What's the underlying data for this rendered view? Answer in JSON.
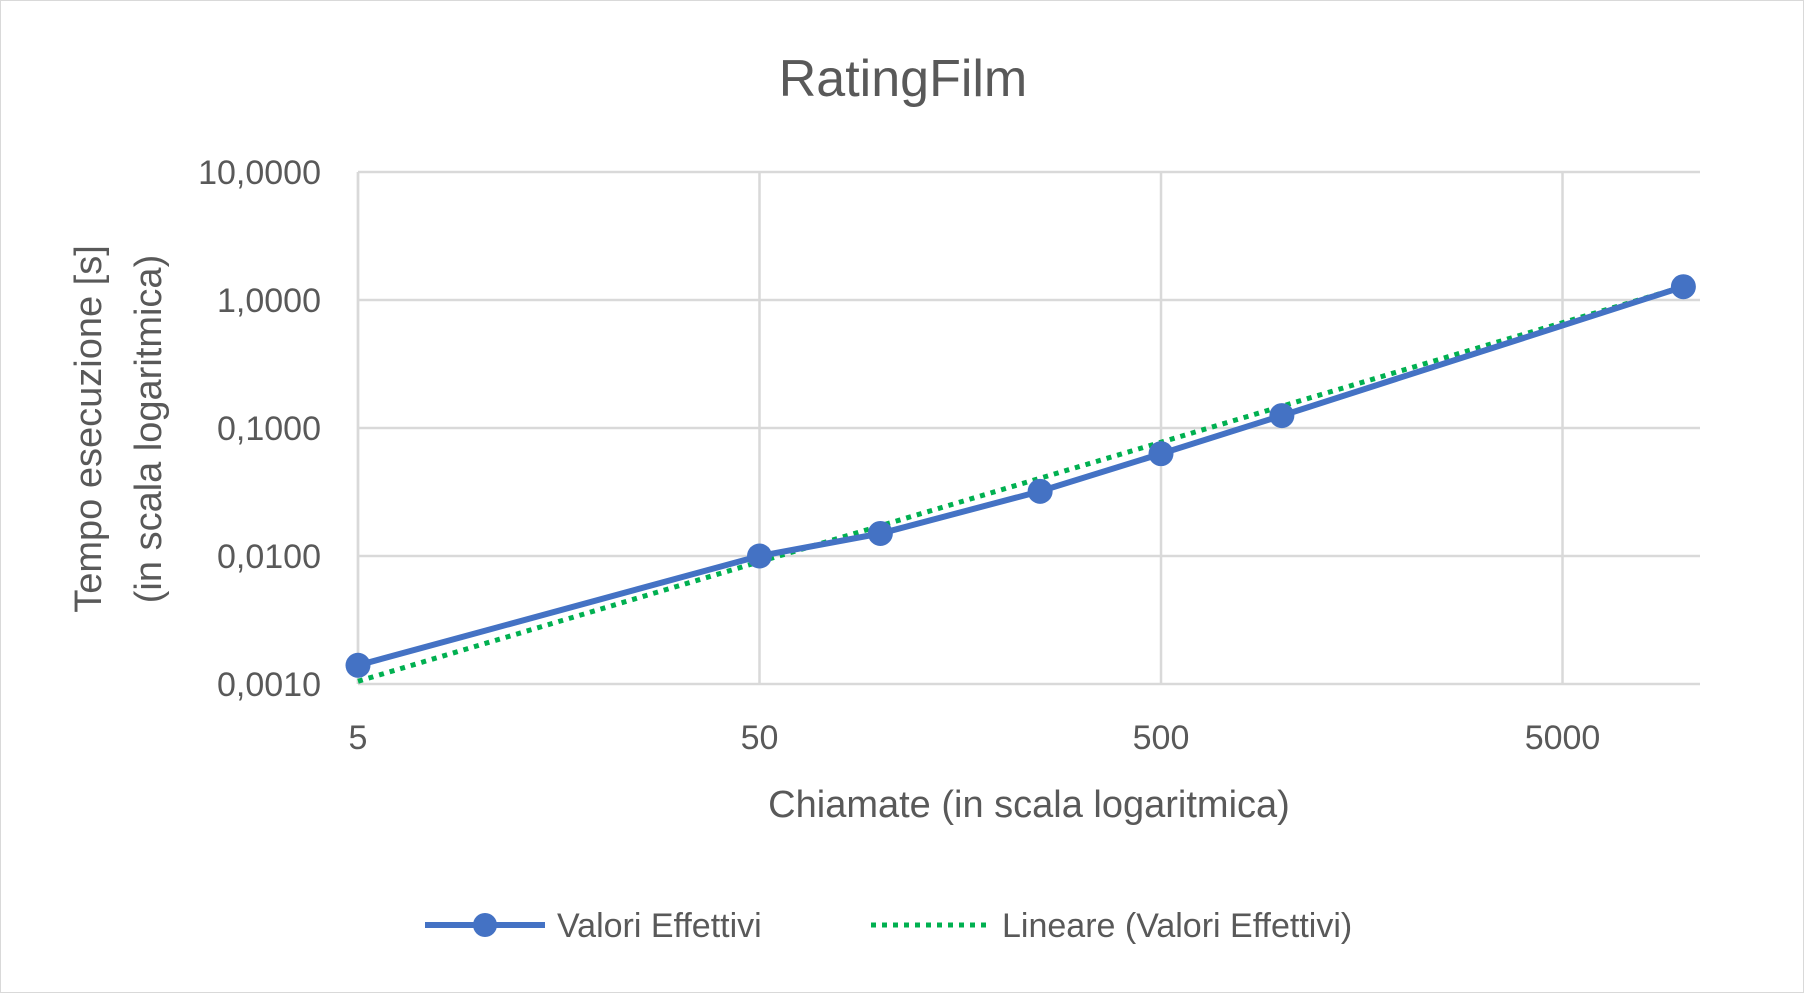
{
  "chart_data": {
    "type": "line",
    "title": "RatingFilm",
    "xlabel": "Chiamate (in scala logaritmica)",
    "ylabel_lines": [
      "Tempo esecuzione [s]",
      "(in scala logaritmica)"
    ],
    "x_scale": "log",
    "y_scale": "log",
    "xlim": [
      5,
      11000
    ],
    "ylim": [
      0.001,
      10
    ],
    "x_ticks": [
      5,
      50,
      500,
      5000
    ],
    "x_tick_labels": [
      "5",
      "50",
      "500",
      "5000"
    ],
    "y_ticks": [
      0.001,
      0.01,
      0.1,
      1,
      10
    ],
    "y_tick_labels": [
      "0,0010",
      "0,0100",
      "0,1000",
      "1,0000",
      "10,0000"
    ],
    "grid": true,
    "legend_position": "bottom",
    "series": [
      {
        "name": "Valori Effettivi",
        "color": "#4472C4",
        "style": "solid-with-markers",
        "x": [
          5,
          50,
          100,
          250,
          500,
          1000,
          10000
        ],
        "y": [
          0.0014,
          0.01,
          0.015,
          0.032,
          0.063,
          0.125,
          1.27
        ]
      },
      {
        "name": "Lineare (Valori Effettivi)",
        "color": "#00B050",
        "style": "dotted-trendline",
        "x": [
          5,
          10000
        ],
        "y": [
          0.00105,
          1.27
        ]
      }
    ]
  }
}
